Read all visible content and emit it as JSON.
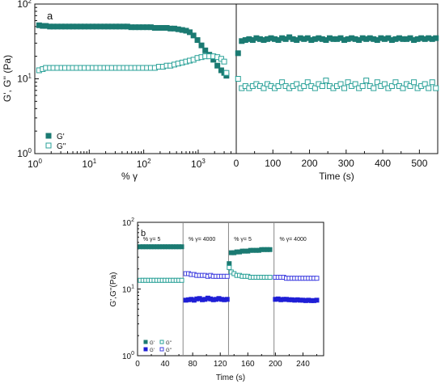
{
  "chart_data": [
    {
      "type": "scatter",
      "panel_label": "a",
      "xscale": "log",
      "yscale": "log",
      "xlim": [
        1,
        5000
      ],
      "ylim": [
        1,
        100
      ],
      "xlabel": "% γ",
      "ylabel": "G', G'' (Pa)",
      "xticks": [
        {
          "value": 1,
          "base": "10",
          "exp": "0"
        },
        {
          "value": 10,
          "base": "10",
          "exp": "1"
        },
        {
          "value": 100,
          "base": "10",
          "exp": "2"
        },
        {
          "value": 1000,
          "base": "10",
          "exp": "3"
        }
      ],
      "yticks": [
        {
          "value": 1,
          "base": "10",
          "exp": "0"
        },
        {
          "value": 10,
          "base": "10",
          "exp": "1"
        },
        {
          "value": 100,
          "base": "10",
          "exp": "2"
        }
      ],
      "legend": [
        {
          "label": "G'",
          "filled": true,
          "color": "#1b7a72"
        },
        {
          "label": "G''",
          "filled": false,
          "color": "#2aa198"
        }
      ],
      "series": [
        {
          "name": "G'",
          "filled": true,
          "color": "#1b7a72",
          "x": [
            1.2,
            1.4,
            1.6,
            1.9,
            2.2,
            2.6,
            3.1,
            3.6,
            4.3,
            5.0,
            5.9,
            7.0,
            8.2,
            9.7,
            11.5,
            13.5,
            16,
            19,
            22,
            26,
            31,
            36,
            43,
            50,
            59,
            70,
            82,
            97,
            115,
            135,
            160,
            190,
            225,
            265,
            310,
            365,
            430,
            510,
            600,
            700,
            820,
            970,
            1150,
            1350,
            1600,
            1900,
            2250,
            2650,
            3000,
            3300
          ],
          "y": [
            52,
            51,
            51,
            50,
            50,
            50,
            50,
            50,
            50,
            50,
            50,
            50,
            50,
            50,
            50,
            50,
            50,
            50,
            50,
            50,
            50,
            50,
            50,
            50,
            49,
            49,
            49,
            49,
            49,
            49,
            48,
            48,
            48,
            48,
            47,
            47,
            46,
            45,
            44,
            42,
            38,
            33,
            28,
            24,
            21,
            18,
            15,
            13,
            12,
            11
          ]
        },
        {
          "name": "G''",
          "filled": false,
          "color": "#2aa198",
          "x": [
            1.2,
            1.4,
            1.6,
            1.9,
            2.2,
            2.6,
            3.1,
            3.6,
            4.3,
            5.0,
            5.9,
            7.0,
            8.2,
            9.7,
            11.5,
            13.5,
            16,
            19,
            22,
            26,
            31,
            36,
            43,
            50,
            59,
            70,
            82,
            97,
            115,
            135,
            160,
            190,
            225,
            265,
            310,
            365,
            430,
            510,
            600,
            700,
            820,
            970,
            1150,
            1350,
            1600,
            1900,
            2250,
            2650,
            3000,
            3300
          ],
          "y": [
            13,
            13.5,
            14,
            14,
            14,
            14,
            14,
            14,
            14,
            14,
            14,
            14,
            14,
            14,
            14,
            14,
            14,
            14,
            14,
            14,
            14,
            14,
            14,
            14,
            14,
            14,
            14,
            14,
            14,
            14,
            14,
            14.5,
            14.5,
            15,
            15,
            15.5,
            16,
            16.5,
            17,
            17.5,
            18,
            19,
            19.5,
            20,
            20,
            20,
            19.5,
            18.5,
            17,
            12
          ]
        }
      ]
    },
    {
      "type": "scatter",
      "xscale": "linear",
      "yscale": "log",
      "xlim": [
        0,
        550
      ],
      "ylim": [
        1,
        100
      ],
      "xlabel": "Time (s)",
      "xticks": [
        0,
        100,
        200,
        300,
        400,
        500
      ],
      "series": [
        {
          "name": "G'",
          "filled": true,
          "color": "#1b7a72",
          "x": [
            5,
            15,
            25,
            35,
            45,
            55,
            65,
            75,
            85,
            95,
            105,
            115,
            125,
            135,
            145,
            155,
            165,
            175,
            185,
            195,
            205,
            215,
            225,
            235,
            245,
            255,
            265,
            275,
            285,
            295,
            305,
            315,
            325,
            335,
            345,
            355,
            365,
            375,
            385,
            395,
            405,
            415,
            425,
            435,
            445,
            455,
            465,
            475,
            485,
            495,
            505,
            515,
            525,
            535,
            545
          ],
          "y": [
            22,
            32,
            33,
            34,
            33,
            35,
            34,
            33,
            34,
            35,
            34,
            33,
            35,
            34,
            36,
            34,
            33,
            35,
            34,
            35,
            33,
            34,
            35,
            34,
            33,
            35,
            34,
            34,
            35,
            33,
            34,
            35,
            34,
            33,
            35,
            34,
            35,
            34,
            33,
            35,
            34,
            35,
            33,
            34,
            35,
            34,
            34,
            35,
            33,
            34,
            35,
            34,
            35,
            34,
            35
          ]
        },
        {
          "name": "G''",
          "filled": false,
          "color": "#2aa198",
          "x": [
            5,
            15,
            25,
            35,
            45,
            55,
            65,
            75,
            85,
            95,
            105,
            115,
            125,
            135,
            145,
            155,
            165,
            175,
            185,
            195,
            205,
            215,
            225,
            235,
            245,
            255,
            265,
            275,
            285,
            295,
            305,
            315,
            325,
            335,
            345,
            355,
            365,
            375,
            385,
            395,
            405,
            415,
            425,
            435,
            445,
            455,
            465,
            475,
            485,
            495,
            505,
            515,
            525,
            535,
            545
          ],
          "y": [
            10,
            7.5,
            8,
            7.5,
            8,
            8.5,
            8,
            7.5,
            8.5,
            8,
            7.5,
            8,
            9,
            8,
            7.5,
            8,
            8.5,
            7.5,
            8,
            9,
            8,
            7.5,
            8.5,
            8,
            9.5,
            8,
            7.5,
            8,
            8.5,
            7.5,
            9,
            8,
            8.5,
            7.5,
            8,
            9.5,
            8,
            7.5,
            9,
            8,
            8.5,
            7.5,
            8,
            9,
            8,
            7.5,
            8.5,
            8,
            9,
            7.5,
            8,
            8.5,
            7.5,
            9,
            7.5
          ]
        }
      ]
    },
    {
      "type": "scatter",
      "panel_label": "b",
      "xscale": "linear",
      "yscale": "log",
      "xlim": [
        0,
        270
      ],
      "ylim": [
        1,
        100
      ],
      "xlabel": "Time (s)",
      "ylabel": "G',G''(Pa)",
      "xticks": [
        0,
        40,
        80,
        120,
        160,
        200,
        240
      ],
      "yticks": [
        {
          "value": 1,
          "base": "10",
          "exp": "0"
        },
        {
          "value": 10,
          "base": "10",
          "exp": "1"
        },
        {
          "value": 100,
          "base": "10",
          "exp": "2"
        }
      ],
      "section_dividers": [
        66,
        132,
        198
      ],
      "section_labels": [
        "% γ= 5",
        "% γ= 4000",
        "% γ= 5",
        "% γ= 4000"
      ],
      "section_label_x": [
        8,
        74,
        140,
        206
      ],
      "legend": [
        {
          "label": "G'",
          "filled": true,
          "color": "#1b7a72"
        },
        {
          "label": "G''",
          "filled": false,
          "color": "#2aa198"
        },
        {
          "label": "G'",
          "filled": true,
          "color": "#1f1fd6"
        },
        {
          "label": "G''",
          "filled": false,
          "color": "#4040e0"
        }
      ],
      "series": [
        {
          "name": "G'",
          "filled": true,
          "color": "#1b7a72",
          "x": [
            4,
            8,
            12,
            16,
            20,
            24,
            28,
            32,
            36,
            40,
            44,
            48,
            52,
            56,
            60,
            64
          ],
          "y": [
            43,
            43,
            43,
            43,
            43,
            43,
            43,
            43,
            43,
            43,
            43,
            43,
            43,
            43,
            43,
            43
          ]
        },
        {
          "name": "G''",
          "filled": false,
          "color": "#2aa198",
          "x": [
            4,
            8,
            12,
            16,
            20,
            24,
            28,
            32,
            36,
            40,
            44,
            48,
            52,
            56,
            60,
            64
          ],
          "y": [
            13.5,
            13.5,
            13.5,
            13.5,
            13.5,
            13.5,
            13.5,
            13.5,
            13.5,
            13.5,
            13.5,
            13.5,
            13.5,
            13.5,
            13.5,
            13.5
          ]
        },
        {
          "name": "G'",
          "filled": true,
          "color": "#1f1fd6",
          "x": [
            70,
            74,
            78,
            82,
            86,
            90,
            94,
            98,
            102,
            106,
            110,
            114,
            118,
            122,
            126,
            130
          ],
          "y": [
            6.8,
            6.9,
            7.0,
            6.8,
            7.1,
            7.2,
            6.9,
            7.0,
            7.3,
            7.1,
            6.9,
            7.0,
            7.2,
            7.0,
            6.9,
            7.0
          ]
        },
        {
          "name": "G''",
          "filled": false,
          "color": "#4040e0",
          "x": [
            70,
            74,
            78,
            82,
            86,
            90,
            94,
            98,
            102,
            106,
            110,
            114,
            118,
            122,
            126,
            130
          ],
          "y": [
            17,
            17,
            16.5,
            16.5,
            16,
            16,
            16,
            16,
            15.5,
            16,
            15.5,
            15.5,
            15.5,
            15.5,
            15.5,
            15.5
          ]
        },
        {
          "name": "G'",
          "filled": true,
          "color": "#1b7a72",
          "x": [
            133,
            136,
            140,
            144,
            148,
            152,
            156,
            160,
            164,
            168,
            172,
            176,
            180,
            184,
            188,
            192
          ],
          "y": [
            24,
            35,
            35,
            36,
            36,
            37,
            37,
            37,
            38,
            38,
            38,
            38,
            39,
            39,
            39,
            39
          ]
        },
        {
          "name": "G''",
          "filled": false,
          "color": "#2aa198",
          "x": [
            133,
            136,
            140,
            144,
            148,
            152,
            156,
            160,
            164,
            168,
            172,
            176,
            180,
            184,
            188,
            192
          ],
          "y": [
            21,
            18,
            17,
            16,
            16,
            15.5,
            15.5,
            15.5,
            15,
            15,
            15,
            15,
            15,
            15,
            15,
            15
          ]
        },
        {
          "name": "G'",
          "filled": true,
          "color": "#1f1fd6",
          "x": [
            200,
            204,
            208,
            212,
            216,
            220,
            224,
            228,
            232,
            236,
            240,
            244,
            248,
            252,
            256,
            260
          ],
          "y": [
            7.0,
            7.1,
            6.9,
            7.0,
            7.0,
            6.9,
            6.9,
            6.8,
            6.9,
            6.8,
            6.8,
            6.7,
            6.8,
            6.7,
            6.7,
            6.8
          ]
        },
        {
          "name": "G''",
          "filled": false,
          "color": "#4040e0",
          "x": [
            200,
            204,
            208,
            212,
            216,
            220,
            224,
            228,
            232,
            236,
            240,
            244,
            248,
            252,
            256,
            260
          ],
          "y": [
            15,
            15,
            15,
            15,
            14.5,
            14.5,
            14.5,
            14.5,
            14.5,
            14.5,
            14.5,
            14.5,
            14.5,
            14.5,
            14.5,
            14.5
          ]
        }
      ]
    }
  ]
}
